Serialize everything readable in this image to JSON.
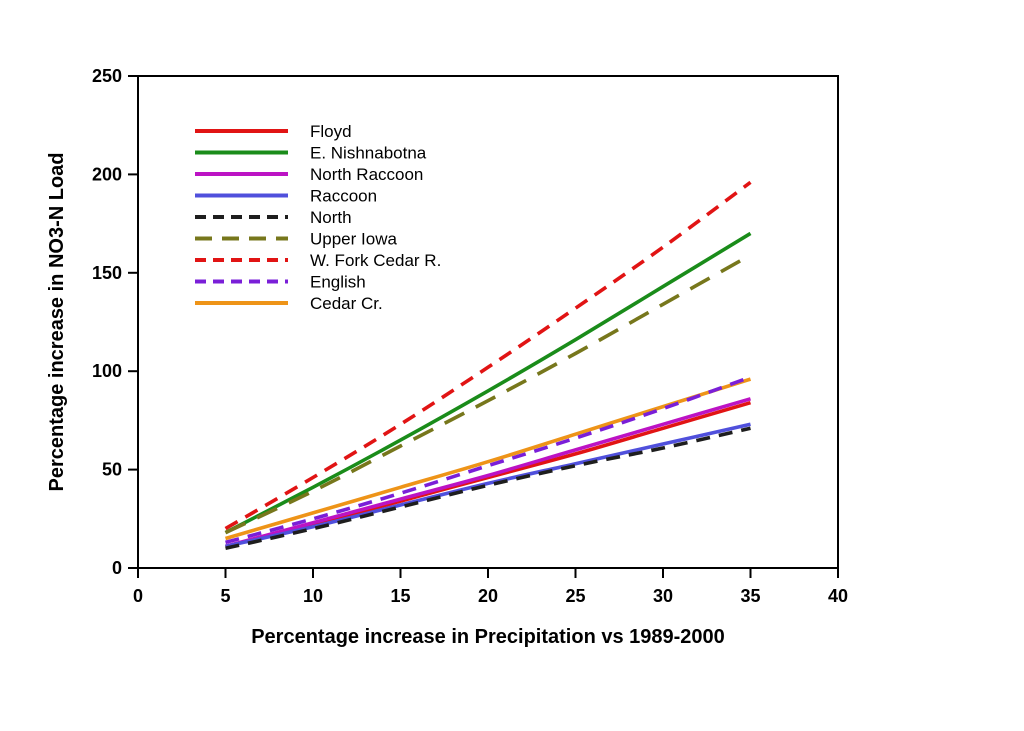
{
  "chart_data": {
    "type": "line",
    "title": "",
    "xlabel": "Percentage increase in Precipitation vs 1989-2000",
    "ylabel": "Percentage increase in NO3-N Load",
    "xlim": [
      0,
      40
    ],
    "ylim": [
      0,
      250
    ],
    "xticks": [
      0,
      5,
      10,
      15,
      20,
      25,
      30,
      35,
      40
    ],
    "yticks": [
      0,
      50,
      100,
      150,
      200,
      250
    ],
    "grid": false,
    "frame": "full-box",
    "legend_position": "upper-left-inside",
    "axis_color": "#000000",
    "background_color": "#ffffff",
    "x": [
      5,
      10,
      15,
      20,
      25,
      30,
      35
    ],
    "series": [
      {
        "name": "Floyd",
        "color": "#e11414",
        "style": "solid",
        "values": [
          11,
          22,
          34,
          46,
          58,
          71,
          84
        ]
      },
      {
        "name": "E. Nishnabotna",
        "color": "#1a8c1a",
        "style": "solid",
        "values": [
          18,
          41,
          65,
          90,
          116,
          143,
          170
        ]
      },
      {
        "name": "North Raccoon",
        "color": "#bc13c4",
        "style": "solid",
        "values": [
          11,
          23,
          35,
          47,
          60,
          73,
          86
        ]
      },
      {
        "name": "Raccoon",
        "color": "#5050dc",
        "style": "solid",
        "values": [
          11,
          21,
          32,
          43,
          53,
          63,
          73
        ]
      },
      {
        "name": "North",
        "color": "#1e1e1e",
        "style": "dashed",
        "values": [
          10,
          20,
          31,
          42,
          52,
          61,
          71
        ]
      },
      {
        "name": "Upper Iowa",
        "color": "#77771c",
        "style": "long-dashed",
        "values": [
          18,
          39,
          62,
          85,
          109,
          134,
          159
        ]
      },
      {
        "name": "W. Fork Cedar R.",
        "color": "#e11414",
        "style": "dashed",
        "values": [
          20,
          46,
          73,
          102,
          132,
          163,
          196
        ]
      },
      {
        "name": "English",
        "color": "#7a1fd8",
        "style": "dashed",
        "values": [
          13,
          25,
          38,
          52,
          66,
          81,
          97
        ]
      },
      {
        "name": "Cedar Cr.",
        "color": "#ee9418",
        "style": "solid",
        "values": [
          15,
          28,
          41,
          54,
          68,
          82,
          96
        ]
      }
    ]
  }
}
